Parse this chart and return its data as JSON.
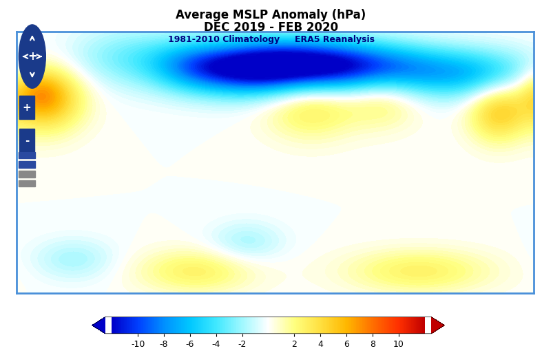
{
  "title_line1": "Average MSLP Anomaly (hPa)",
  "title_line2": "DEC 2019 - FEB 2020",
  "subtitle": "1981-2010 Climatology     ERA5 Reanalysis",
  "cbar_ticks": [
    -10,
    -8,
    -6,
    -4,
    -2,
    2,
    4,
    6,
    8,
    10
  ],
  "vmin": -12,
  "vmax": 12,
  "colormap_colors": [
    [
      0.0,
      "#0000c8"
    ],
    [
      0.083,
      "#0040ff"
    ],
    [
      0.167,
      "#0090ff"
    ],
    [
      0.25,
      "#00c8ff"
    ],
    [
      0.333,
      "#40e8ff"
    ],
    [
      0.417,
      "#a0f8ff"
    ],
    [
      0.5,
      "#ffffff"
    ],
    [
      0.583,
      "#ffff80"
    ],
    [
      0.667,
      "#ffe040"
    ],
    [
      0.75,
      "#ffb800"
    ],
    [
      0.833,
      "#ff7000"
    ],
    [
      0.917,
      "#ff3000"
    ],
    [
      1.0,
      "#c00000"
    ]
  ],
  "border_color": "#4a90d9",
  "fig_bg": "#ffffff",
  "lon_min": -180,
  "lon_max": 180,
  "lat_min": -70,
  "lat_max": 85
}
